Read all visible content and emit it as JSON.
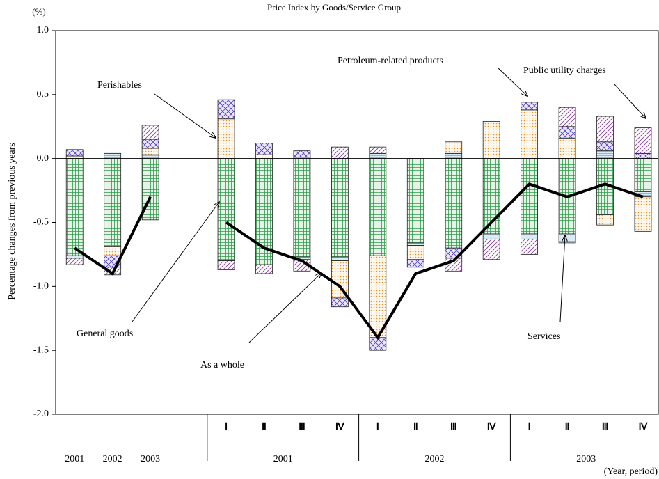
{
  "chart_data": {
    "type": "bar",
    "title": "Price Index by Goods/Service Group",
    "unit_label": "(%)",
    "y_label": "Percentage changes from previous years",
    "x_note": "(Year, period)",
    "categories": [
      "2001",
      "2002",
      "2003",
      null,
      "Ⅰ",
      "Ⅱ",
      "Ⅲ",
      "Ⅳ",
      "Ⅰ",
      "Ⅱ",
      "Ⅲ",
      "Ⅳ",
      "Ⅰ",
      "Ⅱ",
      "Ⅲ",
      "Ⅳ"
    ],
    "category_groups": [
      "2001",
      "2002",
      "2003"
    ],
    "ylim": [
      -2.0,
      1.0
    ],
    "yticks": [
      {
        "value": -2.0,
        "label": "-2.0"
      },
      {
        "value": -1.5,
        "label": "-1.5"
      },
      {
        "value": -1.0,
        "label": "-1.0"
      },
      {
        "value": -0.5,
        "label": "-0.5"
      },
      {
        "value": 0.0,
        "label": "0.0"
      },
      {
        "value": 0.5,
        "label": "0.5"
      },
      {
        "value": 1.0,
        "label": "1.0"
      }
    ],
    "grid": false,
    "series": [
      {
        "name": "General goods",
        "type": "bar",
        "pattern": "grid",
        "color": "#2e9a4a",
        "values": [
          -0.76,
          -0.69,
          -0.48,
          null,
          -0.8,
          -0.83,
          -0.77,
          -0.77,
          -0.76,
          -0.66,
          -0.7,
          -0.59,
          -0.59,
          -0.59,
          -0.44,
          -0.26
        ]
      },
      {
        "name": "Services",
        "type": "bar",
        "pattern": "lines",
        "color": "#5aa9e0",
        "values": [
          -0.02,
          0.04,
          0.03,
          null,
          0,
          0,
          -0.02,
          -0.03,
          0.04,
          -0.02,
          0.04,
          -0.04,
          -0.04,
          -0.07,
          0.06,
          -0.04
        ]
      },
      {
        "name": "Perishables",
        "type": "bar",
        "pattern": "dots",
        "color": "#e8902a",
        "values": [
          0.02,
          -0.07,
          0.05,
          null,
          0.31,
          0.03,
          0.01,
          -0.29,
          -0.64,
          -0.11,
          0.09,
          0.29,
          0.38,
          0.16,
          -0.08,
          -0.27
        ]
      },
      {
        "name": "Petroleum-related products",
        "type": "bar",
        "pattern": "cross",
        "color": "#4a3fc0",
        "values": [
          0.05,
          -0.09,
          0.07,
          null,
          0.15,
          0.09,
          0.05,
          -0.07,
          -0.1,
          -0.06,
          -0.08,
          0,
          0.06,
          0.09,
          0.07,
          0.04
        ]
      },
      {
        "name": "Public utility charges",
        "type": "bar",
        "pattern": "diagonal",
        "color": "#8b3fa0",
        "values": [
          -0.05,
          -0.06,
          0.11,
          null,
          -0.07,
          -0.07,
          -0.09,
          0.09,
          0.05,
          0,
          -0.1,
          -0.16,
          -0.12,
          0.15,
          0.2,
          0.2
        ]
      },
      {
        "name": "As a whole",
        "type": "line",
        "color": "#000000",
        "values": [
          -0.7,
          -0.9,
          -0.3,
          null,
          -0.5,
          -0.7,
          -0.8,
          -1.0,
          -1.4,
          -0.9,
          -0.8,
          -0.5,
          -0.2,
          -0.3,
          -0.2,
          -0.3
        ]
      }
    ]
  }
}
